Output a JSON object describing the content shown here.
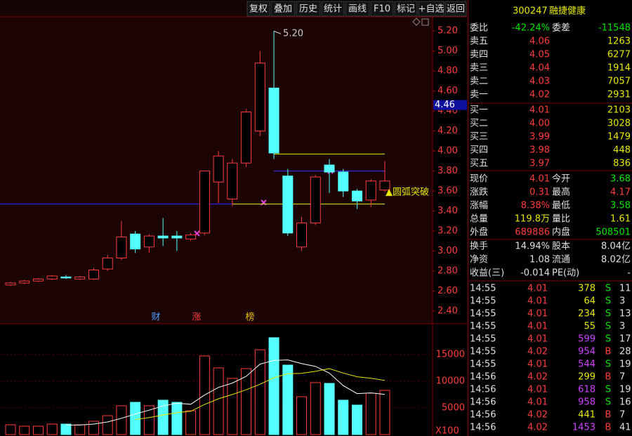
{
  "toolbar": [
    "复权",
    "叠加",
    "历史",
    "统计",
    "画线",
    "F10",
    "标记",
    "+自选",
    "返回"
  ],
  "chart_data": {
    "type": "candlestick",
    "open": [
      2.66,
      2.68,
      2.7,
      2.72,
      2.74,
      2.72,
      2.72,
      2.82,
      2.93,
      3.17,
      3.04,
      3.15,
      3.15,
      3.12,
      3.18,
      3.69,
      3.52,
      3.88,
      4.2,
      4.63,
      3.75,
      3.04,
      3.28,
      3.86,
      3.79,
      3.6,
      3.51,
      3.61
    ],
    "high": [
      2.69,
      2.71,
      2.73,
      2.76,
      2.76,
      2.75,
      2.83,
      2.96,
      3.3,
      3.2,
      3.17,
      3.33,
      3.2,
      3.18,
      3.8,
      4.0,
      3.92,
      4.42,
      5.0,
      5.2,
      3.82,
      3.34,
      3.76,
      3.92,
      3.82,
      3.62,
      3.72,
      3.9
    ],
    "low": [
      2.65,
      2.67,
      2.69,
      2.71,
      2.72,
      2.71,
      2.71,
      2.8,
      2.91,
      2.98,
      2.98,
      3.05,
      3.0,
      3.1,
      3.16,
      3.48,
      3.45,
      3.84,
      4.15,
      3.92,
      3.15,
      3.0,
      3.26,
      3.58,
      3.54,
      3.42,
      3.44,
      3.59
    ],
    "close": [
      2.68,
      2.7,
      2.72,
      2.75,
      2.73,
      2.74,
      2.81,
      2.93,
      3.14,
      3.02,
      3.15,
      3.13,
      3.13,
      3.16,
      3.8,
      3.95,
      3.88,
      4.39,
      4.88,
      3.98,
      3.18,
      3.28,
      3.74,
      3.79,
      3.6,
      3.5,
      3.7,
      3.7
    ],
    "volume": [
      1840,
      1580,
      1580,
      1970,
      1970,
      1840,
      2500,
      3550,
      5400,
      6050,
      5400,
      6450,
      6050,
      4470,
      14740,
      12500,
      10530,
      12370,
      15900,
      18160,
      13030,
      7100,
      9740,
      9600,
      6450,
      5530,
      7760,
      8290
    ],
    "up_color": "#ff3c3c",
    "down_color": "#54ffff",
    "ylim": [
      2.28,
      5.3
    ],
    "yticks": [
      {
        "value": 2.4,
        "label": "2.40"
      },
      {
        "value": 2.6,
        "label": "2.60"
      },
      {
        "value": 2.8,
        "label": "2.80"
      },
      {
        "value": 3.0,
        "label": "3.00"
      },
      {
        "value": 3.2,
        "label": "3.20"
      },
      {
        "value": 3.4,
        "label": "3.40"
      },
      {
        "value": 3.6,
        "label": "3.60"
      },
      {
        "value": 3.8,
        "label": "3.80"
      },
      {
        "value": 4.0,
        "label": "4.00"
      },
      {
        "value": 4.2,
        "label": "4.20"
      },
      {
        "value": 4.4,
        "label": "4.40"
      },
      {
        "value": 4.6,
        "label": "4.60"
      },
      {
        "value": 4.8,
        "label": "4.80"
      },
      {
        "value": 5.0,
        "label": "5.00"
      },
      {
        "value": 5.2,
        "label": "5.20"
      }
    ],
    "y2lim": [
      0,
      20000
    ],
    "y2ticks": [
      5000,
      10000,
      15000
    ],
    "volume_ma": [
      {
        "window": 5,
        "color": "#ffffff"
      },
      {
        "window": 10,
        "color": "#e8e800"
      }
    ],
    "levels": [
      {
        "value": 3.47,
        "color": "#2b2bff",
        "from": 0
      },
      {
        "value": 3.47,
        "color": "#e8e800",
        "from": 16
      },
      {
        "value": 3.8,
        "color": "#3a3aff",
        "from": 19
      },
      {
        "value": 3.97,
        "color": "#e8e800",
        "from": 19
      }
    ],
    "cursor": {
      "value": 4.46,
      "label": "4.46"
    },
    "high_label": "5.20",
    "signal": "▲圆弧突破",
    "markers": [
      {
        "text": "财",
        "color": "#4a9cff"
      },
      {
        "text": "涨",
        "color": "#ff3c3c"
      },
      {
        "text": "榜",
        "color": "#e8c000"
      }
    ],
    "unit": "X100"
  },
  "header": {
    "code": "300247",
    "name": "融捷健康"
  },
  "summary": [
    {
      "label": "委比",
      "value": "-42.24%",
      "color": "#00e600"
    },
    {
      "label": "委差",
      "value": "-11548",
      "color": "#00e600"
    }
  ],
  "asks": [
    {
      "label": "卖五",
      "price": "4.06",
      "volume": "1263"
    },
    {
      "label": "卖四",
      "price": "4.05",
      "volume": "6277"
    },
    {
      "label": "卖三",
      "price": "4.04",
      "volume": "1914"
    },
    {
      "label": "卖二",
      "price": "4.03",
      "volume": "7057"
    },
    {
      "label": "卖一",
      "price": "4.02",
      "volume": "2931"
    }
  ],
  "bids": [
    {
      "label": "买一",
      "price": "4.01",
      "volume": "2103"
    },
    {
      "label": "买二",
      "price": "4.00",
      "volume": "3028"
    },
    {
      "label": "买三",
      "price": "3.99",
      "volume": "1479"
    },
    {
      "label": "买四",
      "price": "3.98",
      "volume": "448"
    },
    {
      "label": "买五",
      "price": "3.97",
      "volume": "836"
    }
  ],
  "stats": [
    [
      {
        "label": "现价",
        "value": "4.01",
        "color": "#ff3c3c"
      },
      {
        "label": "今开",
        "value": "3.68",
        "color": "#00e600"
      }
    ],
    [
      {
        "label": "涨跌",
        "value": "0.31",
        "color": "#ff3c3c"
      },
      {
        "label": "最高",
        "value": "4.17",
        "color": "#ff3c3c"
      }
    ],
    [
      {
        "label": "涨幅",
        "value": "8.38%",
        "color": "#ff3c3c"
      },
      {
        "label": "最低",
        "value": "3.58",
        "color": "#00e600"
      }
    ],
    [
      {
        "label": "总量",
        "value": "119.8万",
        "color": "#e8e800"
      },
      {
        "label": "量比",
        "value": "1.61",
        "color": "#e8e800"
      }
    ],
    [
      {
        "label": "外盘",
        "value": "689886",
        "color": "#ff3c3c"
      },
      {
        "label": "内盘",
        "value": "508501",
        "color": "#00e600"
      }
    ],
    [
      {
        "label": "换手",
        "value": "14.94%",
        "color": "#e0e0e0"
      },
      {
        "label": "股本",
        "value": "8.04亿",
        "color": "#e0e0e0"
      }
    ],
    [
      {
        "label": "净资",
        "value": "1.08",
        "color": "#e0e0e0"
      },
      {
        "label": "流通",
        "value": "8.02亿",
        "color": "#e0e0e0"
      }
    ],
    [
      {
        "label": "收益(三)",
        "value": "-0.014",
        "color": "#e0e0e0"
      },
      {
        "label": "PE(动)",
        "value": "-",
        "color": "#e0e0e0"
      }
    ]
  ],
  "trades": [
    {
      "time": "14:55",
      "price": "4.01",
      "volume": "378",
      "color": "#e8e800",
      "side": "S",
      "count": "11"
    },
    {
      "time": "14:55",
      "price": "4.01",
      "volume": "64",
      "color": "#e8e800",
      "side": "S",
      "count": "3"
    },
    {
      "time": "14:55",
      "price": "4.01",
      "volume": "234",
      "color": "#e8e800",
      "side": "S",
      "count": "13"
    },
    {
      "time": "14:55",
      "price": "4.01",
      "volume": "55",
      "color": "#e8e800",
      "side": "S",
      "count": "3"
    },
    {
      "time": "14:55",
      "price": "4.01",
      "volume": "599",
      "color": "#d040ff",
      "side": "S",
      "count": "17"
    },
    {
      "time": "14:55",
      "price": "4.02",
      "volume": "954",
      "color": "#d040ff",
      "side": "B",
      "count": "28"
    },
    {
      "time": "14:55",
      "price": "4.01",
      "volume": "544",
      "color": "#d040ff",
      "side": "S",
      "count": "19"
    },
    {
      "time": "14:56",
      "price": "4.02",
      "volume": "299",
      "color": "#e8e800",
      "side": "B",
      "count": "7"
    },
    {
      "time": "14:56",
      "price": "4.01",
      "volume": "618",
      "color": "#d040ff",
      "side": "S",
      "count": "19"
    },
    {
      "time": "14:56",
      "price": "4.01",
      "volume": "958",
      "color": "#d040ff",
      "side": "S",
      "count": "16"
    },
    {
      "time": "14:56",
      "price": "4.02",
      "volume": "441",
      "color": "#e8e800",
      "side": "B",
      "count": "7"
    },
    {
      "time": "14:56",
      "price": "4.02",
      "volume": "1453",
      "color": "#d040ff",
      "side": "B",
      "count": "41"
    }
  ]
}
